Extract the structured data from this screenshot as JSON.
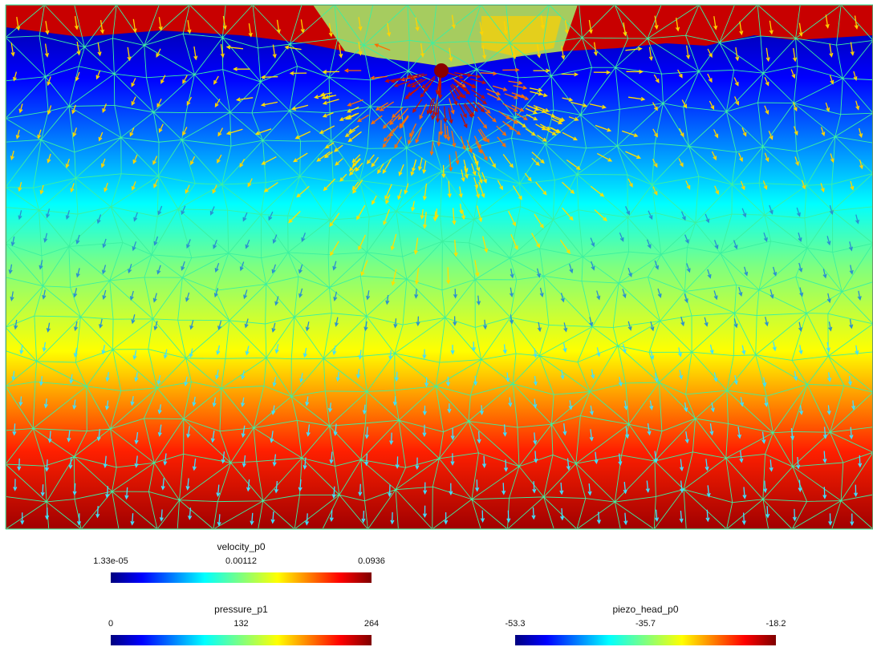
{
  "legends": {
    "velocity": {
      "title": "velocity_p0",
      "min": "1.33e-05",
      "mid": "0.00112",
      "max": "0.0936"
    },
    "pressure": {
      "title": "pressure_p1",
      "min": "0",
      "mid": "132",
      "max": "264"
    },
    "piezo": {
      "title": "piezo_head_p0",
      "min": "-53.3",
      "mid": "-35.7",
      "max": "-18.2"
    }
  },
  "colormap": [
    "#00007f",
    "#0000ff",
    "#00ffff",
    "#7fff7f",
    "#ffff00",
    "#ff0000",
    "#7f0000"
  ],
  "colors": {
    "mesh_lines": "#3cf0a0",
    "frame": "#6a9a6a"
  }
}
